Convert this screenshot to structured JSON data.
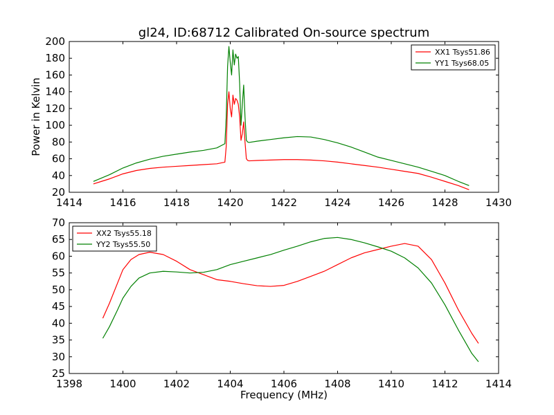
{
  "chart_data": [
    {
      "type": "line",
      "title": "gl24, ID:68712 Calibrated On-source spectrum",
      "xlabel": "",
      "ylabel": "Power in Kelvin",
      "xlim": [
        1414,
        1430
      ],
      "ylim": [
        20,
        200
      ],
      "xticks": [
        1414,
        1416,
        1418,
        1420,
        1422,
        1424,
        1426,
        1428,
        1430
      ],
      "yticks": [
        20,
        40,
        60,
        80,
        100,
        120,
        140,
        160,
        180,
        200
      ],
      "grid": false,
      "legend_position": "top-right",
      "series": [
        {
          "name": "XX1 Tsys51.86",
          "color": "#ff0000",
          "x": [
            1414.9,
            1415.2,
            1415.5,
            1416.0,
            1416.5,
            1417.0,
            1417.5,
            1418.0,
            1418.5,
            1419.0,
            1419.5,
            1419.8,
            1419.85,
            1419.9,
            1419.95,
            1420.0,
            1420.05,
            1420.1,
            1420.15,
            1420.2,
            1420.25,
            1420.3,
            1420.35,
            1420.4,
            1420.45,
            1420.5,
            1420.55,
            1420.6,
            1420.65,
            1420.7,
            1421.0,
            1421.5,
            1422.0,
            1422.5,
            1423.0,
            1423.5,
            1424.0,
            1424.5,
            1425.0,
            1425.5,
            1426.0,
            1426.5,
            1427.0,
            1427.5,
            1428.0,
            1428.5,
            1428.9
          ],
          "y": [
            30,
            33,
            36,
            42,
            46,
            48.5,
            50,
            51,
            52,
            53,
            54,
            56,
            75,
            125,
            140,
            120,
            110,
            136,
            125,
            132,
            130,
            125,
            110,
            82,
            90,
            104,
            80,
            60,
            58,
            57.5,
            58,
            58.5,
            59,
            59,
            58.5,
            57.5,
            56,
            54,
            52,
            50,
            47.5,
            45,
            42.5,
            38,
            33,
            28,
            23
          ]
        },
        {
          "name": "YY1 Tsys68.05",
          "color": "#008000",
          "x": [
            1414.9,
            1415.2,
            1415.5,
            1416.0,
            1416.5,
            1417.0,
            1417.5,
            1418.0,
            1418.5,
            1419.0,
            1419.5,
            1419.8,
            1419.85,
            1419.9,
            1419.95,
            1420.0,
            1420.05,
            1420.1,
            1420.15,
            1420.2,
            1420.25,
            1420.3,
            1420.35,
            1420.4,
            1420.45,
            1420.5,
            1420.55,
            1420.6,
            1420.65,
            1420.7,
            1421.0,
            1421.5,
            1422.0,
            1422.5,
            1423.0,
            1423.5,
            1424.0,
            1424.5,
            1425.0,
            1425.5,
            1426.0,
            1426.5,
            1427.0,
            1427.5,
            1428.0,
            1428.5,
            1428.9
          ],
          "y": [
            33,
            37,
            41,
            49,
            55,
            59.5,
            63,
            65.5,
            68,
            70,
            73,
            78,
            110,
            170,
            194,
            175,
            160,
            190,
            172,
            185,
            180,
            182,
            150,
            100,
            125,
            148,
            110,
            82,
            80,
            79.5,
            81,
            83,
            85,
            86.5,
            86,
            83,
            79,
            74,
            68,
            62,
            58,
            54,
            50,
            45,
            40,
            33,
            28
          ]
        }
      ]
    },
    {
      "type": "line",
      "title": "",
      "xlabel": "Frequency (MHz)",
      "ylabel": "",
      "xlim": [
        1398,
        1414
      ],
      "ylim": [
        25,
        70
      ],
      "xticks": [
        1398,
        1400,
        1402,
        1404,
        1406,
        1408,
        1410,
        1412,
        1414
      ],
      "yticks": [
        25,
        30,
        35,
        40,
        45,
        50,
        55,
        60,
        65,
        70
      ],
      "grid": false,
      "legend_position": "top-left",
      "series": [
        {
          "name": "XX2 Tsys55.18",
          "color": "#ff0000",
          "x": [
            1399.25,
            1399.5,
            1399.8,
            1400.0,
            1400.3,
            1400.6,
            1401.0,
            1401.5,
            1402.0,
            1402.5,
            1403.0,
            1403.5,
            1404.0,
            1404.5,
            1405.0,
            1405.5,
            1406.0,
            1406.5,
            1407.0,
            1407.5,
            1408.0,
            1408.5,
            1409.0,
            1409.5,
            1410.0,
            1410.5,
            1411.0,
            1411.5,
            1412.0,
            1412.5,
            1413.0,
            1413.25
          ],
          "y": [
            41.5,
            46,
            52,
            56,
            59,
            60.5,
            61.2,
            60.5,
            58.5,
            56,
            54.5,
            53,
            52.5,
            51.8,
            51.2,
            51,
            51.3,
            52.5,
            54,
            55.5,
            57.5,
            59.5,
            61,
            62,
            63,
            63.8,
            63,
            59,
            52,
            44,
            37,
            34
          ]
        },
        {
          "name": "YY2 Tsys55.50",
          "color": "#008000",
          "x": [
            1399.25,
            1399.5,
            1399.8,
            1400.0,
            1400.3,
            1400.6,
            1401.0,
            1401.5,
            1402.0,
            1402.5,
            1403.0,
            1403.5,
            1404.0,
            1404.5,
            1405.0,
            1405.5,
            1406.0,
            1406.5,
            1407.0,
            1407.5,
            1408.0,
            1408.5,
            1409.0,
            1409.5,
            1410.0,
            1410.5,
            1411.0,
            1411.5,
            1412.0,
            1412.5,
            1413.0,
            1413.25
          ],
          "y": [
            35.5,
            39,
            44,
            47.5,
            51,
            53.5,
            55,
            55.5,
            55.3,
            55,
            55.2,
            56,
            57.5,
            58.5,
            59.5,
            60.5,
            61.8,
            63,
            64.3,
            65.3,
            65.6,
            65,
            64,
            62.8,
            61.5,
            59.5,
            56.5,
            52,
            45.5,
            38,
            31,
            28.5
          ]
        }
      ]
    }
  ]
}
